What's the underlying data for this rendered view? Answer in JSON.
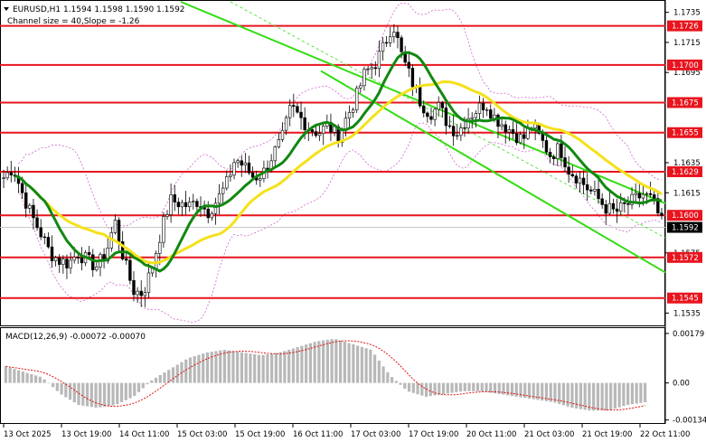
{
  "header": {
    "symbol_line": "EURUSD,H1  1.1594 1.1598 1.1590 1.1592",
    "channel_line": "Channel size = 40,Slope = -1.26"
  },
  "macd": {
    "label": "MACD(12,26,9) -0.00072 -0.00070",
    "ticks": [
      "0.00179",
      "0.00",
      "-0.00134"
    ]
  },
  "colors": {
    "resistance": "#e8141e",
    "channel": "#33dd11",
    "ma_fast": "#118811",
    "ma_slow": "#f5e11b",
    "bands": "#cc66cc",
    "candle": "#000000",
    "macd_hist": "#b8b8b8",
    "macd_signal": "#dd1111"
  },
  "chart_data": {
    "type": "candlestick",
    "symbol": "EURUSD",
    "timeframe": "H1",
    "ohlc_last": {
      "open": 1.1594,
      "high": 1.1598,
      "low": 1.159,
      "close": 1.1592
    },
    "channel": {
      "size": 40,
      "slope": -1.26
    },
    "price_ticks": [
      "1.1735",
      "1.1715",
      "1.1695",
      "1.1635",
      "1.1615",
      "1.1575",
      "1.1535"
    ],
    "price_range": [
      1.1528,
      1.1742
    ],
    "levels": [
      {
        "price": 1.1726,
        "label": "1.1726"
      },
      {
        "price": 1.17,
        "label": "1.1700"
      },
      {
        "price": 1.1675,
        "label": "1.1675"
      },
      {
        "price": 1.1655,
        "label": "1.1655"
      },
      {
        "price": 1.1629,
        "label": "1.1629"
      },
      {
        "price": 1.16,
        "label": "1.1600"
      },
      {
        "price": 1.1572,
        "label": "1.1572"
      },
      {
        "price": 1.1545,
        "label": "1.1545"
      }
    ],
    "current_price": {
      "price": 1.1592,
      "label": "1.1592"
    },
    "time_labels": [
      "13 Oct 2025",
      "13 Oct 19:00",
      "14 Oct 11:00",
      "15 Oct 03:00",
      "15 Oct 19:00",
      "16 Oct 11:00",
      "17 Oct 03:00",
      "17 Oct 19:00",
      "20 Oct 11:00",
      "21 Oct 03:00",
      "21 Oct 19:00",
      "22 Oct 11:00"
    ],
    "close_path": [
      1.1625,
      1.1632,
      1.1615,
      1.16,
      1.1588,
      1.1575,
      1.157,
      1.1568,
      1.1575,
      1.157,
      1.1566,
      1.1574,
      1.1596,
      1.157,
      1.155,
      1.1548,
      1.1565,
      1.159,
      1.161,
      1.1608,
      1.1606,
      1.161,
      1.1602,
      1.161,
      1.162,
      1.1638,
      1.1632,
      1.1625,
      1.1628,
      1.164,
      1.165,
      1.1672,
      1.1665,
      1.1658,
      1.1655,
      1.166,
      1.1652,
      1.1665,
      1.1678,
      1.1695,
      1.17,
      1.1712,
      1.1728,
      1.1705,
      1.169,
      1.1675,
      1.1668,
      1.1672,
      1.166,
      1.1655,
      1.1665,
      1.167,
      1.1675,
      1.1665,
      1.166,
      1.1655,
      1.165,
      1.166,
      1.165,
      1.164,
      1.1645,
      1.163,
      1.1625,
      1.1618,
      1.1612,
      1.1605,
      1.1602,
      1.1606,
      1.161,
      1.1614,
      1.161,
      1.1595
    ],
    "macd_hist_path": [
      0.0006,
      0.0004,
      0.0002,
      -0.0004,
      -0.0008,
      -0.0009,
      -0.0008,
      -0.0005,
      0.0001,
      0.0005,
      0.0009,
      0.0011,
      0.0012,
      0.0011,
      0.001,
      0.0011,
      0.0013,
      0.0015,
      0.0016,
      0.0014,
      0.0012,
      0.0003,
      -0.0003,
      -0.0005,
      -0.0004,
      -0.0003,
      -0.0003,
      -0.0004,
      -0.0005,
      -0.0006,
      -0.0007,
      -0.0009,
      -0.001,
      -0.001,
      -0.0008,
      -0.0007
    ],
    "macd_range": [
      -0.00145,
      0.00195
    ]
  }
}
